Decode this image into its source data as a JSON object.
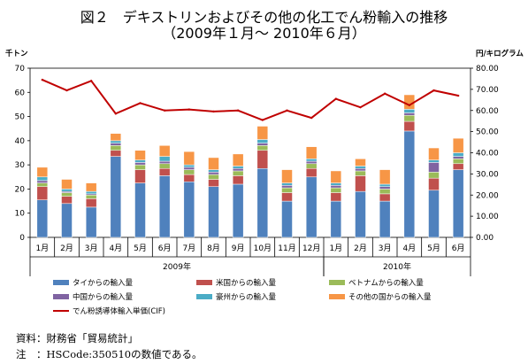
{
  "title": {
    "line1": "図２　デキストリンおよびその他の化工でん粉輸入の推移",
    "line2": "（2009年１月～ 2010年６月）"
  },
  "notes": {
    "source": "資料：財務省「貿易統計」",
    "note": "注　：HSCode:350510の数値である。"
  },
  "colors": {
    "thai": "#4f81bd",
    "us": "#c0504d",
    "vietnam": "#9bbb59",
    "china": "#8064a2",
    "australia": "#4bacc6",
    "other": "#f79646",
    "line": "#c00000"
  },
  "chart_data": {
    "type": "bar",
    "stacked": true,
    "categories": [
      "1月",
      "2月",
      "3月",
      "4月",
      "5月",
      "6月",
      "7月",
      "8月",
      "9月",
      "10月",
      "11月",
      "12月",
      "1月",
      "2月",
      "3月",
      "4月",
      "5月",
      "6月"
    ],
    "year_groups": [
      {
        "label": "2009年",
        "start": 0,
        "end": 11
      },
      {
        "label": "2010年",
        "start": 12,
        "end": 17
      }
    ],
    "ylabel_left": "千トン",
    "ylabel_right": "円/キログラム",
    "ylim_left": [
      0,
      70
    ],
    "ylim_right": [
      0,
      80
    ],
    "yticks_left": [
      0,
      10,
      20,
      30,
      40,
      50,
      60,
      70
    ],
    "yticks_right": [
      "0.00",
      "10.00",
      "20.00",
      "30.00",
      "40.00",
      "50.00",
      "60.00",
      "70.00",
      "80.00"
    ],
    "series": [
      {
        "name": "タイからの輸入量",
        "key": "thai",
        "values": [
          15.5,
          14,
          12.5,
          33.5,
          22.5,
          25.5,
          23,
          21,
          22,
          28.5,
          15,
          25,
          15,
          19,
          15,
          44,
          19.5,
          28
        ]
      },
      {
        "name": "米国からの輸入量",
        "key": "us",
        "values": [
          5.5,
          3,
          3.5,
          2.5,
          5.5,
          3,
          3,
          3,
          3.5,
          7.5,
          3.5,
          3.5,
          3.5,
          6.5,
          3,
          4,
          5,
          2.5
        ]
      },
      {
        "name": "ベトナムからの輸入量",
        "key": "vietnam",
        "values": [
          1.5,
          1.5,
          1.5,
          2,
          2,
          2,
          2,
          2,
          2,
          2,
          2,
          2,
          2,
          2,
          2,
          2.5,
          2.5,
          2
        ]
      },
      {
        "name": "中国からの輸入量",
        "key": "china",
        "values": [
          1,
          0.5,
          0.5,
          1,
          1,
          1,
          1,
          1,
          1,
          1,
          1,
          1,
          1,
          1,
          1,
          1,
          4,
          1
        ]
      },
      {
        "name": "豪州からの輸入量",
        "key": "australia",
        "values": [
          1.5,
          1,
          1,
          1,
          1,
          2,
          1,
          1,
          1,
          1.5,
          1,
          1,
          1,
          1,
          1,
          1.5,
          1,
          1.5
        ]
      },
      {
        "name": "その他の国からの輸入量",
        "key": "other",
        "values": [
          4,
          4,
          3.5,
          3,
          4,
          4.5,
          5.5,
          5,
          5,
          5.5,
          5.5,
          5,
          5,
          3,
          6,
          6,
          5,
          6
        ]
      }
    ],
    "line": {
      "name": "でん粉誘導体輸入単価(CIF)",
      "axis": "right",
      "values": [
        74.5,
        69.5,
        74,
        58.5,
        63.5,
        60,
        60.5,
        59.5,
        60,
        55.5,
        60,
        56.5,
        65.5,
        61.5,
        68,
        62.5,
        69.5,
        67
      ]
    },
    "legend_position": "bottom",
    "grid": false
  }
}
